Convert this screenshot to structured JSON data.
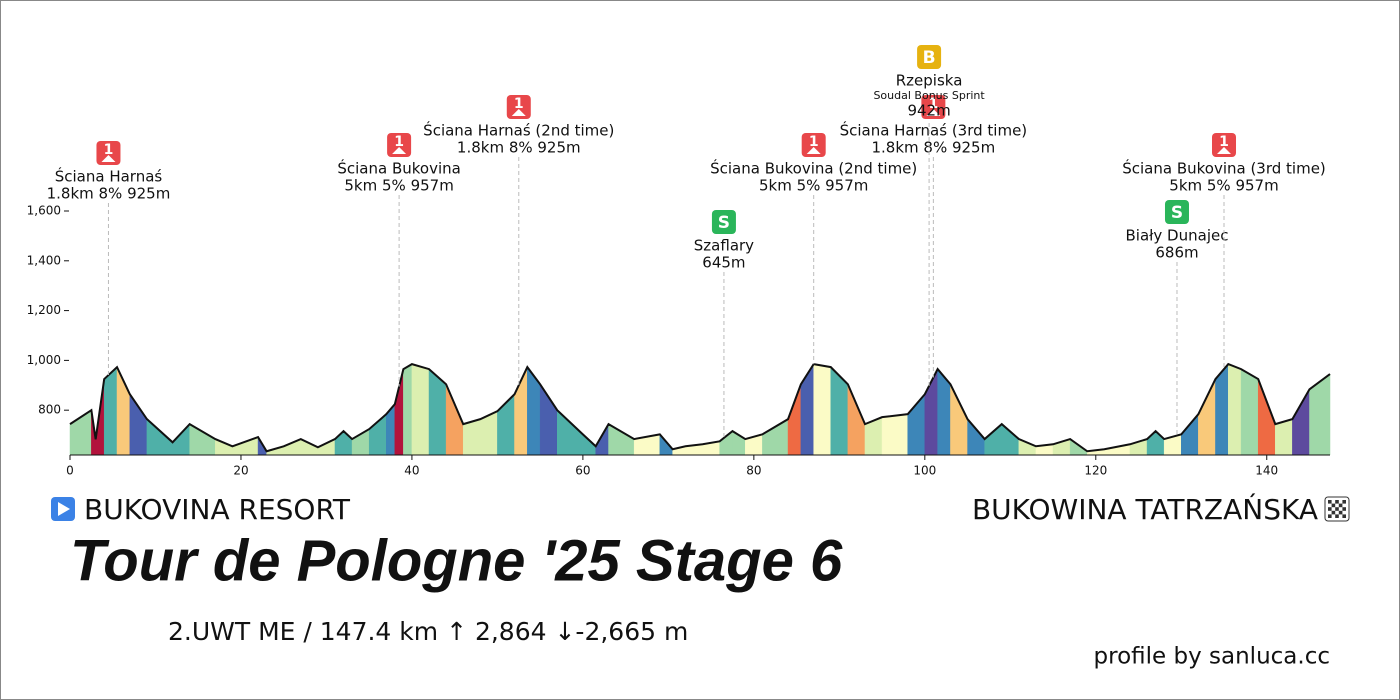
{
  "chart_data": {
    "type": "area",
    "title": "Tour de Pologne '25 Stage 6",
    "subtitle": "2.UWT ME  /  147.4 km  ↑ 2,864  ↓-2,665 m",
    "start": "BUKOVINA RESORT",
    "finish": "BUKOWINA TATRZAŃSKA",
    "credit": "profile by sanluca.cc",
    "x": [
      0,
      2.5,
      3,
      4,
      5.5,
      7,
      9,
      12,
      14,
      17,
      19,
      22,
      23,
      25,
      27,
      29,
      31,
      32,
      33,
      35,
      37,
      38,
      39,
      40,
      42,
      44,
      46,
      48,
      50,
      52,
      53.5,
      55,
      57,
      60,
      61.5,
      63,
      66,
      69,
      70.5,
      72,
      74,
      76,
      77.5,
      79,
      81,
      84,
      85.5,
      87,
      89,
      91,
      93,
      95,
      98,
      100,
      101.5,
      103,
      105,
      107,
      109,
      111,
      113,
      115,
      117,
      119,
      121,
      124,
      126,
      127,
      128,
      130,
      132,
      134,
      135.5,
      137,
      139,
      141,
      143,
      145,
      147.4
    ],
    "y": [
      744,
      800,
      683,
      925,
      973,
      864,
      764,
      671,
      744,
      684,
      655,
      692,
      635,
      655,
      684,
      651,
      684,
      716,
      684,
      724,
      784,
      824,
      965,
      985,
      965,
      904,
      744,
      764,
      796,
      864,
      973,
      904,
      800,
      703,
      655,
      744,
      684,
      703,
      643,
      655,
      663,
      675,
      716,
      684,
      703,
      764,
      904,
      985,
      973,
      904,
      744,
      772,
      784,
      864,
      965,
      904,
      764,
      684,
      744,
      684,
      655,
      663,
      684,
      635,
      643,
      663,
      684,
      716,
      684,
      703,
      784,
      925,
      985,
      965,
      925,
      744,
      764,
      884,
      945
    ],
    "xlim": [
      0,
      147.4
    ],
    "xticks": [
      0,
      20,
      40,
      60,
      80,
      100,
      120,
      140
    ],
    "ylim": [
      620,
      1600
    ],
    "yticks": [
      800,
      {
        "value": 1000,
        "label": "1,000"
      },
      {
        "value": 1200,
        "label": "1,200"
      },
      {
        "value": 1400,
        "label": "1,400"
      },
      {
        "value": 1600,
        "label": "1,600"
      }
    ],
    "colors": [
      "#fbfbc6",
      "#dcefb0",
      "#9fd8a8",
      "#4fb0a8",
      "#3d86b8",
      "#4a5fae",
      "#5d4a9e",
      "#f9c97a",
      "#f5a260",
      "#ee6a43",
      "#b2123c"
    ],
    "annotations": [
      {
        "km": 4.5,
        "badge": "1",
        "color": "#e8474a",
        "lines": [
          "Ściana Harnaś",
          "1.8km 8% 925m"
        ]
      },
      {
        "km": 38.5,
        "badge": "1",
        "color": "#e8474a",
        "lines": [
          "Ściana Bukovina",
          "5km 5% 957m"
        ]
      },
      {
        "km": 52.5,
        "badge": "1",
        "color": "#e8474a",
        "lines": [
          "Ściana Harnaś (2nd time)",
          "1.8km 8% 925m"
        ]
      },
      {
        "km": 76.5,
        "badge": "S",
        "color": "#2ab55a",
        "lines": [
          "Szaflary",
          "645m"
        ]
      },
      {
        "km": 87,
        "badge": "1",
        "color": "#e8474a",
        "lines": [
          "Ściana Bukovina (2nd time)",
          "5km 5% 957m"
        ]
      },
      {
        "km": 101,
        "badge": "1",
        "color": "#e8474a",
        "lines": [
          "Ściana Harnaś (3rd time)",
          "1.8km 8% 925m"
        ]
      },
      {
        "km": 100.5,
        "badge": "B",
        "color": "#e6b210",
        "lines": [
          "Rzepiska",
          "Soudal Bonus Sprint",
          "942m"
        ]
      },
      {
        "km": 129.5,
        "badge": "S",
        "color": "#2ab55a",
        "lines": [
          "Biały Dunajec",
          "686m"
        ]
      },
      {
        "km": 135,
        "badge": "1",
        "color": "#e8474a",
        "lines": [
          "Ściana Bukovina (3rd time)",
          "5km 5% 957m"
        ]
      }
    ]
  }
}
